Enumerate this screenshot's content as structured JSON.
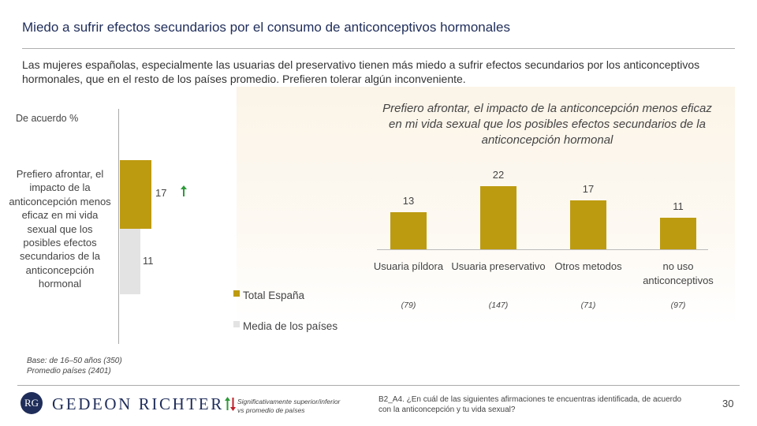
{
  "header": {
    "title": "Miedo a sufrir efectos secundarios por el consumo de anticonceptivos hormonales",
    "intro": "Las mujeres españolas, especialmente las usuarias del preservativo tienen más miedo a sufrir efectos secundarios por los anticonceptivos hormonales, que en el resto de los países promedio. Prefieren tolerar algún inconveniente."
  },
  "colors": {
    "gold": "#bd9b10",
    "gray": "#e3e3e3",
    "up_arrow": "#2e9a3a",
    "down_arrow": "#c0202a",
    "navy": "#1f2d5a"
  },
  "chart_data": [
    {
      "type": "bar",
      "title": "",
      "ylabel": "De acuerdo %",
      "categories": [
        "Prefiero afrontar, el impacto de la anticoncepción menos eficaz en mi vida sexual que los posibles efectos secundarios de la anticoncepción hormonal"
      ],
      "series": [
        {
          "name": "Total España",
          "values": [
            17
          ],
          "color": "#bd9b10"
        },
        {
          "name": "Media de los países",
          "values": [
            11
          ],
          "color": "#e3e3e3"
        }
      ],
      "ylim": [
        0,
        30
      ],
      "significance": {
        "Total España": "up"
      }
    },
    {
      "type": "bar",
      "title": "Prefiero afrontar, el impacto de la anticoncepción menos eficaz en mi vida sexual que los posibles efectos secundarios de la anticoncepción hormonal",
      "categories": [
        "Usuaria píldora",
        "Usuaria preservativo",
        "Otros metodos",
        "no uso anticonceptivos"
      ],
      "values": [
        13,
        22,
        17,
        11
      ],
      "bases": [
        "(79)",
        "(147)",
        "(71)",
        "(97)"
      ],
      "ylim": [
        0,
        30
      ]
    }
  ],
  "footer": {
    "base_note": [
      "Base: de 16–50 años (350)",
      "Promedio países (2401)"
    ],
    "logo_mark": "RG",
    "logo_text": "GEDEON RICHTER",
    "sig_note": [
      "Significativamente superior/inferior",
      "vs promedio de países"
    ],
    "question": "B2_A4. ¿En cuál de las siguientes afirmaciones te encuentras identificada, de acuerdo con la anticoncepción y tu vida sexual?",
    "page": "30"
  }
}
